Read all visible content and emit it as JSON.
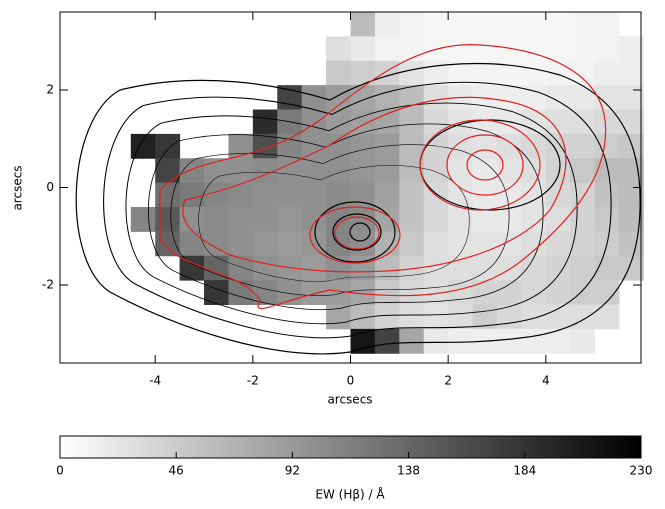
{
  "chart_data": {
    "type": "heatmap",
    "x_label": "arcsecs",
    "y_label": "arcsecs",
    "colorbar_label": "EW (Hβ) / Å",
    "x": [
      -4.25,
      -3.75,
      -3.25,
      -2.75,
      -2.25,
      -1.75,
      -1.25,
      -0.75,
      -0.25,
      0.25,
      0.75,
      1.25,
      1.75,
      2.25,
      2.75,
      3.25,
      3.75,
      4.25,
      4.75,
      5.25,
      5.75
    ],
    "y": [
      3.35,
      2.85,
      2.35,
      1.85,
      1.35,
      0.85,
      0.35,
      -0.15,
      -0.65,
      -1.15,
      -1.65,
      -2.15,
      -2.65,
      -3.15
    ],
    "z": [
      [
        null,
        null,
        null,
        null,
        null,
        null,
        null,
        null,
        null,
        60,
        15,
        10,
        8,
        8,
        8,
        8,
        8,
        8,
        10,
        12,
        null
      ],
      [
        null,
        null,
        null,
        null,
        null,
        null,
        null,
        null,
        30,
        20,
        12,
        10,
        8,
        8,
        8,
        8,
        8,
        8,
        10,
        12,
        15
      ],
      [
        null,
        null,
        null,
        null,
        null,
        null,
        null,
        null,
        50,
        45,
        40,
        25,
        15,
        10,
        10,
        10,
        10,
        12,
        12,
        15,
        15
      ],
      [
        null,
        null,
        null,
        null,
        null,
        null,
        170,
        100,
        90,
        80,
        70,
        60,
        30,
        20,
        15,
        15,
        15,
        20,
        20,
        25,
        25
      ],
      [
        null,
        null,
        null,
        null,
        null,
        190,
        120,
        100,
        90,
        85,
        80,
        60,
        35,
        25,
        20,
        20,
        25,
        30,
        30,
        35,
        35
      ],
      [
        200,
        180,
        null,
        null,
        100,
        160,
        110,
        100,
        100,
        95,
        90,
        60,
        40,
        30,
        25,
        30,
        35,
        40,
        40,
        45,
        50
      ],
      [
        null,
        170,
        110,
        100,
        100,
        105,
        100,
        100,
        100,
        95,
        90,
        60,
        40,
        25,
        20,
        25,
        30,
        40,
        50,
        60,
        60
      ],
      [
        null,
        130,
        120,
        110,
        105,
        100,
        100,
        100,
        105,
        100,
        85,
        55,
        35,
        25,
        20,
        20,
        25,
        35,
        40,
        55,
        60
      ],
      [
        110,
        150,
        100,
        105,
        100,
        100,
        95,
        100,
        110,
        105,
        80,
        55,
        35,
        25,
        20,
        20,
        25,
        30,
        40,
        50,
        60
      ],
      [
        null,
        140,
        110,
        105,
        100,
        95,
        90,
        95,
        110,
        100,
        70,
        50,
        30,
        25,
        25,
        25,
        30,
        35,
        40,
        45,
        55
      ],
      [
        null,
        null,
        180,
        140,
        110,
        100,
        95,
        90,
        100,
        90,
        60,
        40,
        30,
        30,
        30,
        30,
        35,
        40,
        45,
        50,
        50
      ],
      [
        null,
        null,
        null,
        180,
        120,
        110,
        100,
        90,
        90,
        80,
        50,
        35,
        30,
        35,
        40,
        40,
        35,
        40,
        45,
        45,
        null
      ],
      [
        null,
        null,
        null,
        null,
        null,
        null,
        null,
        null,
        80,
        60,
        40,
        30,
        25,
        30,
        45,
        35,
        30,
        30,
        30,
        30,
        null
      ],
      [
        null,
        null,
        null,
        null,
        null,
        null,
        null,
        null,
        null,
        210,
        170,
        80,
        20,
        15,
        15,
        15,
        15,
        15,
        20,
        null,
        null
      ]
    ],
    "cell_size": 0.5,
    "xlim": [
      -5.95,
      5.95
    ],
    "ylim": [
      -3.6,
      3.6
    ],
    "xticks": [
      -4,
      -2,
      0,
      2,
      4
    ],
    "yticks": [
      -2,
      0,
      2
    ],
    "zlim": [
      0,
      230
    ],
    "zticks": [
      0,
      46,
      92,
      138,
      184,
      230
    ]
  }
}
